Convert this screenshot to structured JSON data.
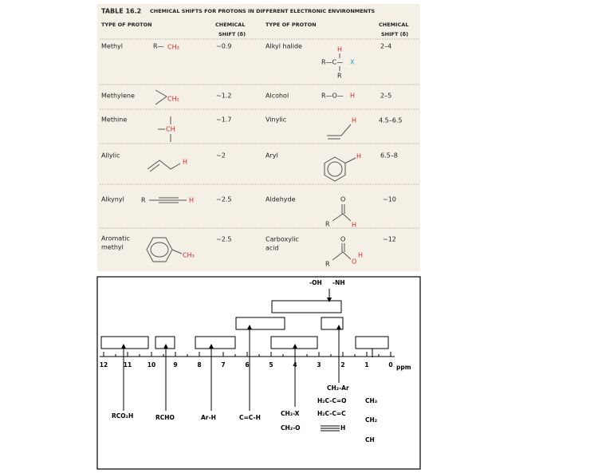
{
  "table": {
    "number": "TABLE 16.2",
    "title": "CHEMICAL SHIFTS FOR PROTONS IN DIFFERENT ELECTRONIC ENVIRONMENTS",
    "columns": [
      [
        "TYPE OF PROTON"
      ],
      [
        "CHEMICAL",
        "SHIFT (δ)"
      ],
      [
        "TYPE OF PROTON"
      ],
      [
        "CHEMICAL",
        "SHIFT (δ)"
      ]
    ],
    "rows": [
      [
        {
          "type": [
            "Methyl"
          ],
          "structure": [
            "R—",
            "CH₃"
          ],
          "shift": "~0.9"
        },
        {
          "type": [
            "Alkyl halide"
          ],
          "structure": [
            "H",
            "R—C—",
            "X",
            "R"
          ],
          "shift": "2–4"
        }
      ],
      [
        {
          "type": [
            "Methylene"
          ],
          "structure": [
            "CH₂"
          ],
          "shift": "~1.2"
        },
        {
          "type": [
            "Alcohol"
          ],
          "structure": [
            "R—O—",
            "H"
          ],
          "shift": "2–5"
        }
      ],
      [
        {
          "type": [
            "Methine"
          ],
          "structure": [
            "CH"
          ],
          "shift": "~1.7"
        },
        {
          "type": [
            "Vinylic"
          ],
          "structure": [
            "H"
          ],
          "shift": "4.5–6.5"
        }
      ],
      [
        {
          "type": [
            "Allylic"
          ],
          "structure": [
            "H"
          ],
          "shift": "~2"
        },
        {
          "type": [
            "Aryl"
          ],
          "structure": [
            "H"
          ],
          "shift": "6.5–8"
        }
      ],
      [
        {
          "type": [
            "Alkynyl"
          ],
          "structure": [
            "R",
            "H"
          ],
          "shift": "~2.5"
        },
        {
          "type": [
            "Aldehyde"
          ],
          "structure": [
            "O",
            "R",
            "H"
          ],
          "shift": "~10"
        }
      ],
      [
        {
          "type": [
            "Aromatic",
            "methyl"
          ],
          "structure": [
            "CH₃"
          ],
          "shift": "~2.5"
        },
        {
          "type": [
            "Carboxylic",
            "acid"
          ],
          "structure": [
            "O",
            "R",
            "O",
            "H"
          ],
          "shift": "~12"
        }
      ]
    ]
  },
  "diagram": {
    "top_labels": [
      "-OH",
      "-NH"
    ],
    "axis": {
      "ticks": [
        12,
        11,
        10,
        9,
        8,
        7,
        6,
        5,
        4,
        3,
        2,
        1,
        0
      ],
      "unit": "ppm"
    },
    "bottom_labels": [
      "RCO₂H",
      "RCHO",
      "Ar-H",
      "C=C-H",
      "CH₂-X",
      "CH₂-O",
      "CH₂-Ar",
      "H₂C-C=O",
      "H₂C-C=C",
      "H",
      "CH₃",
      "CH₂",
      "CH"
    ]
  }
}
